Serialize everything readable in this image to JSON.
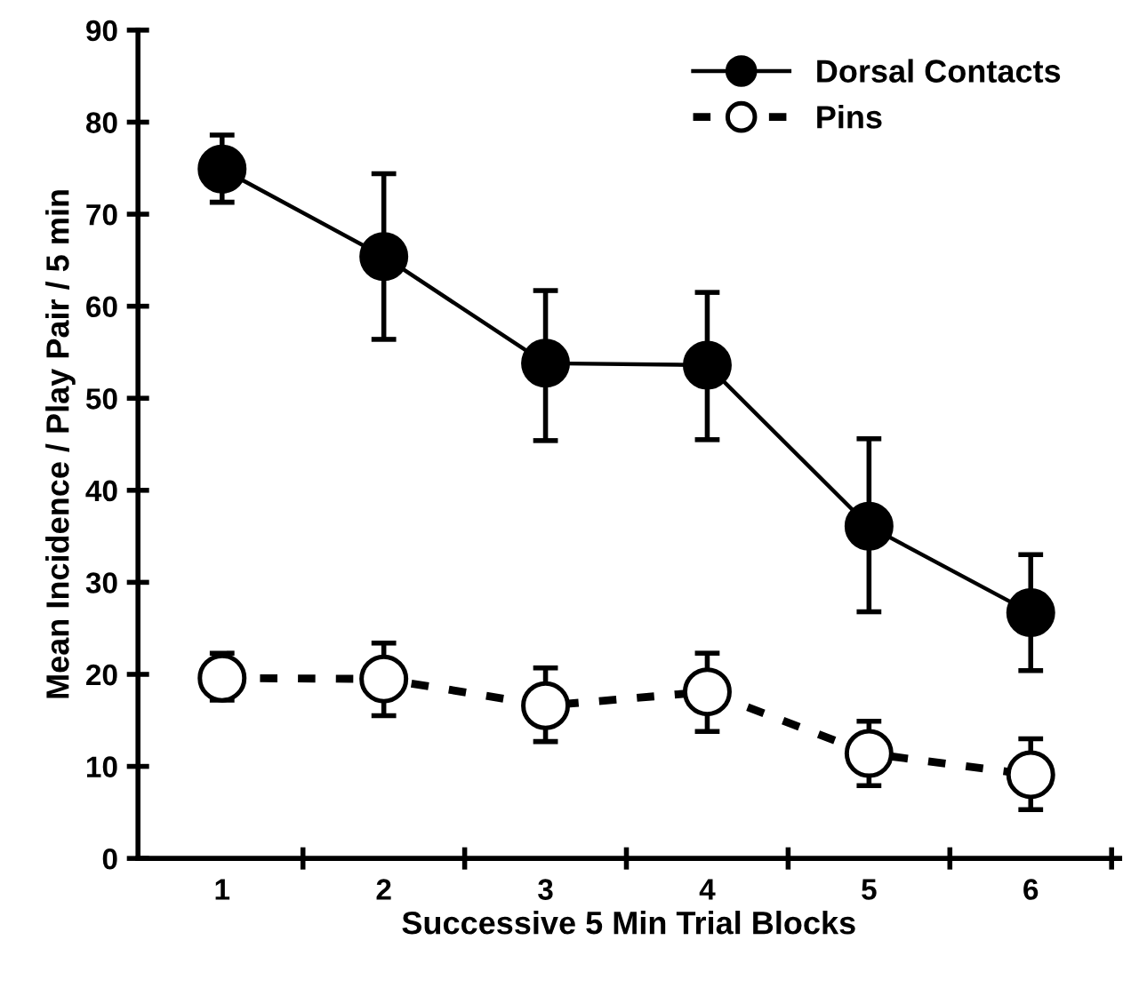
{
  "chart_data": {
    "type": "line",
    "xlabel": "Successive 5 Min Trial Blocks",
    "ylabel": "Mean Incidence / Play Pair / 5 min",
    "categories": [
      "1",
      "2",
      "3",
      "4",
      "5",
      "6"
    ],
    "series": [
      {
        "name": "Dorsal Contacts",
        "color": "#000000",
        "marker": "circle",
        "line_style": "solid",
        "values": [
          74.9,
          65.4,
          53.8,
          53.6,
          36.1,
          26.7
        ],
        "errors": [
          [
            71.3,
            78.6
          ],
          [
            56.4,
            74.4
          ],
          [
            45.4,
            61.7
          ],
          [
            45.5,
            61.5
          ],
          [
            26.8,
            45.6
          ],
          [
            20.4,
            33.0
          ]
        ]
      },
      {
        "name": "Pins",
        "color": "#000000",
        "marker": "circle",
        "line_style": "dashed",
        "values": [
          19.6,
          19.5,
          16.6,
          18.1,
          11.4,
          9.1
        ],
        "errors": [
          [
            17.2,
            22.3
          ],
          [
            15.5,
            23.4
          ],
          [
            12.7,
            20.7
          ],
          [
            13.8,
            22.3
          ],
          [
            7.9,
            14.9
          ],
          [
            5.3,
            13.0
          ]
        ]
      }
    ],
    "ylim": [
      0,
      90
    ],
    "yticks": [
      0,
      10,
      20,
      30,
      40,
      50,
      60,
      70,
      80,
      90
    ],
    "grid": false,
    "legend": "top right"
  }
}
